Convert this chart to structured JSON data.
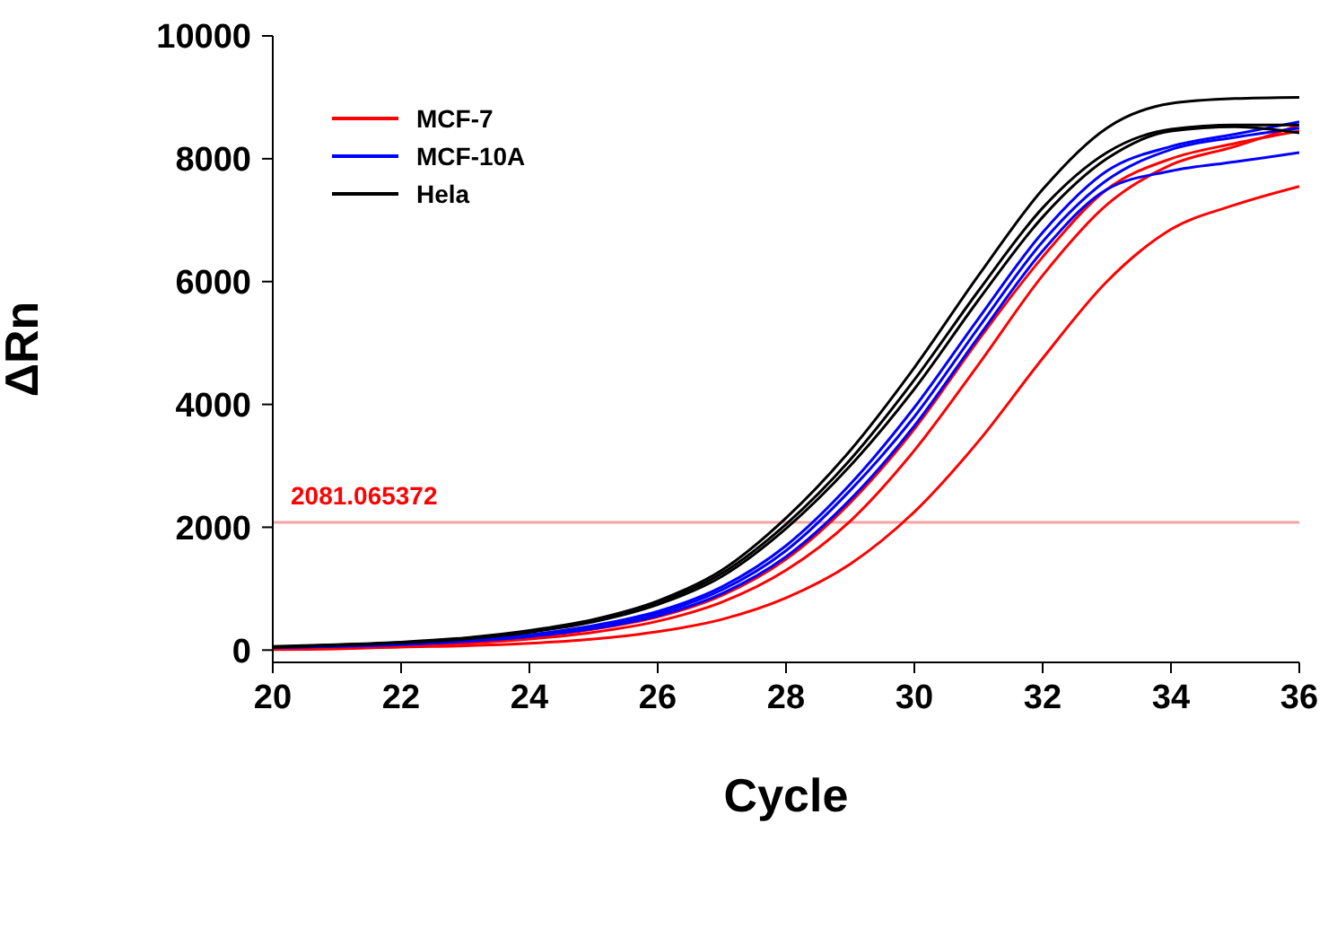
{
  "chart_data": {
    "type": "line",
    "xlabel": "Cycle",
    "ylabel": "ΔRn",
    "x": [
      20,
      21,
      22,
      23,
      24,
      25,
      26,
      27,
      28,
      29,
      30,
      31,
      32,
      33,
      34,
      35,
      36
    ],
    "series": [
      {
        "name": "MCF-7",
        "color": "#ff0000",
        "values": [
          20,
          50,
          80,
          130,
          210,
          340,
          540,
          890,
          1480,
          2400,
          3600,
          5050,
          6400,
          7500,
          8000,
          8250,
          8450
        ]
      },
      {
        "color": "#ff0000",
        "values": [
          20,
          40,
          70,
          110,
          180,
          290,
          470,
          780,
          1300,
          2100,
          3250,
          4650,
          6100,
          7250,
          7900,
          8200,
          8550
        ]
      },
      {
        "color": "#ff0000",
        "values": [
          10,
          20,
          50,
          70,
          110,
          180,
          300,
          500,
          850,
          1400,
          2250,
          3400,
          4750,
          6000,
          6850,
          7250,
          7550
        ]
      },
      {
        "name": "MCF-10A",
        "color": "#0000ff",
        "values": [
          40,
          70,
          100,
          160,
          250,
          400,
          630,
          1030,
          1700,
          2700,
          3950,
          5400,
          6800,
          7800,
          8200,
          8400,
          8600
        ]
      },
      {
        "color": "#0000ff",
        "values": [
          40,
          70,
          100,
          150,
          240,
          380,
          600,
          980,
          1620,
          2600,
          3800,
          5250,
          6650,
          7650,
          8150,
          8350,
          8500
        ]
      },
      {
        "color": "#0000ff",
        "values": [
          40,
          60,
          90,
          140,
          220,
          350,
          560,
          920,
          1520,
          2450,
          3650,
          5100,
          6500,
          7500,
          7800,
          7950,
          8100
        ]
      },
      {
        "name": "Hela",
        "color": "#000000",
        "values": [
          60,
          90,
          130,
          200,
          320,
          500,
          800,
          1300,
          2150,
          3250,
          4600,
          6100,
          7500,
          8500,
          8900,
          8980,
          9000
        ]
      },
      {
        "color": "#000000",
        "values": [
          50,
          80,
          120,
          190,
          300,
          480,
          770,
          1250,
          2050,
          3100,
          4400,
          5850,
          7200,
          8100,
          8480,
          8550,
          8550
        ]
      },
      {
        "color": "#000000",
        "values": [
          50,
          80,
          120,
          180,
          290,
          460,
          740,
          1200,
          1980,
          3000,
          4250,
          5700,
          7050,
          8000,
          8450,
          8520,
          8420
        ]
      }
    ],
    "xlim": [
      20,
      36
    ],
    "xticks": [
      20,
      22,
      24,
      26,
      28,
      30,
      32,
      34,
      36
    ],
    "ylim": [
      -200,
      10000
    ],
    "yticks": [
      0,
      2000,
      4000,
      6000,
      8000,
      10000
    ],
    "ref_lines": [
      {
        "axis": "y",
        "value": 2081.065372,
        "label": "2081.065372",
        "color": "#f4a4a4"
      }
    ],
    "legend": "top left",
    "grid": false,
    "marker": "none",
    "line_style": "solid"
  }
}
